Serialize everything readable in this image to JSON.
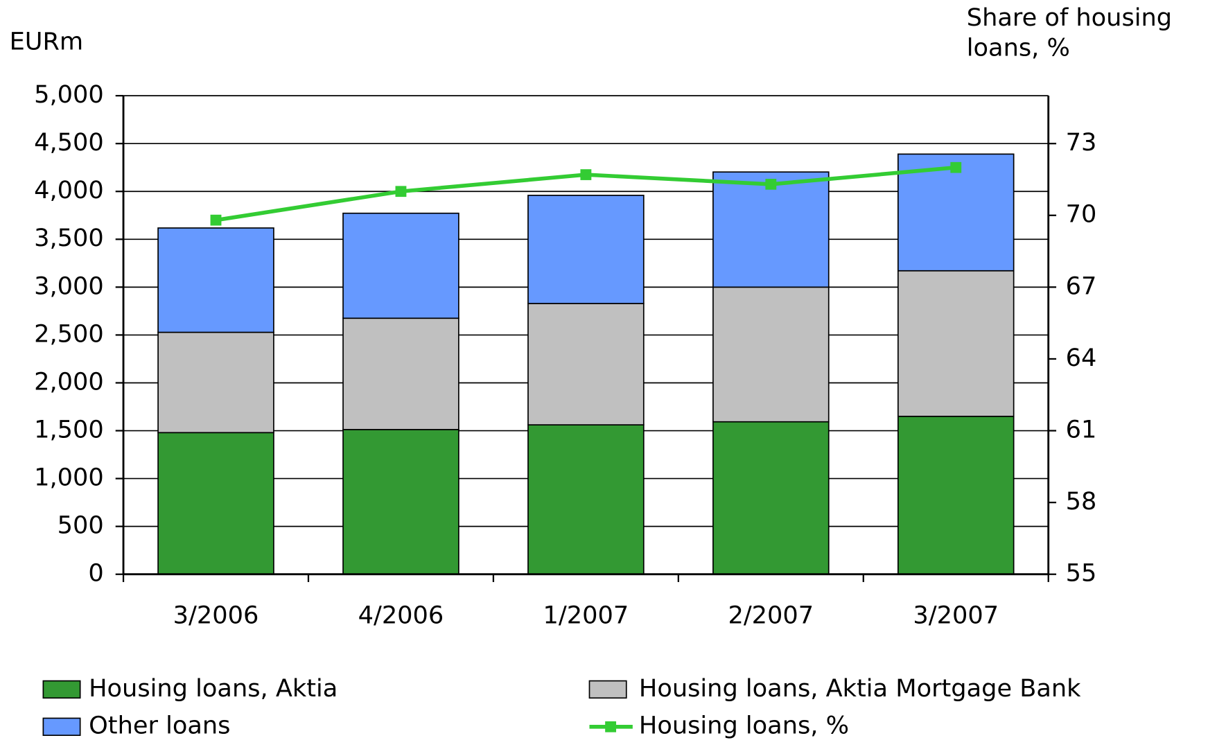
{
  "chart_data": {
    "type": "bar",
    "stacked": true,
    "y_label": "EURm",
    "y2_label": [
      "Share of housing",
      "loans, %"
    ],
    "categories": [
      "3/2006",
      "4/2006",
      "1/2007",
      "2/2007",
      "3/2007"
    ],
    "series": [
      {
        "name": "Housing loans, Aktia",
        "color": "#339933",
        "values": [
          1480,
          1512,
          1561,
          1593,
          1650
        ]
      },
      {
        "name": "Housing loans, Aktia Mortgage Bank",
        "color": "#c0c0c0",
        "values": [
          1048,
          1163,
          1268,
          1407,
          1521
        ]
      },
      {
        "name": "Other loans",
        "color": "#6699ff",
        "values": [
          1090,
          1097,
          1130,
          1203,
          1219
        ]
      },
      {
        "name": "Housing loans, %",
        "color": "#33cc33",
        "type": "line",
        "axis": "y2",
        "values": [
          69.8,
          71.0,
          71.7,
          71.3,
          72.0
        ]
      }
    ],
    "ylim": [
      0,
      5000
    ],
    "yticks": [
      0,
      500,
      {
        "value": 1000,
        "label": "1,000"
      },
      {
        "value": 1500,
        "label": "1,500"
      },
      {
        "value": 2000,
        "label": "2,000"
      },
      {
        "value": 2500,
        "label": "2,500"
      },
      {
        "value": 3000,
        "label": "3,000"
      },
      {
        "value": 3500,
        "label": "3,500"
      },
      {
        "value": 4000,
        "label": "4,000"
      },
      {
        "value": 4500,
        "label": "4,500"
      },
      {
        "value": 5000,
        "label": "5,000"
      }
    ],
    "y2lim": [
      55,
      75
    ],
    "y2ticks": [
      55,
      58,
      61,
      64,
      67,
      70,
      73
    ],
    "grid": true,
    "legend": "bottom"
  }
}
